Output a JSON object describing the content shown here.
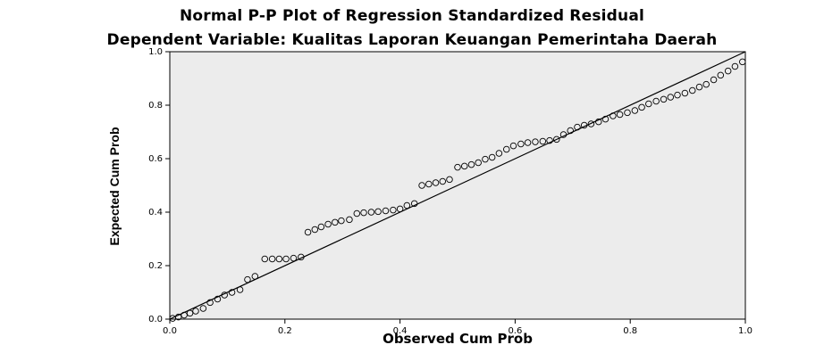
{
  "chart_data": {
    "type": "scatter",
    "title": "Normal P-P Plot of Regression Standardized Residual",
    "subtitle": "Dependent Variable: Kualitas Laporan Keuangan Pemerintaha Daerah",
    "xlabel": "Observed Cum Prob",
    "ylabel": "Expected Cum Prob",
    "xlim": [
      0.0,
      1.0
    ],
    "ylim": [
      0.0,
      1.0
    ],
    "xticks": [
      "0.0",
      "0.2",
      "0.4",
      "0.6",
      "0.8",
      "1.0"
    ],
    "yticks": [
      "0.0",
      "0.2",
      "0.4",
      "0.6",
      "0.8",
      "1.0"
    ],
    "reference_line": [
      [
        0.0,
        0.0
      ],
      [
        1.0,
        1.0
      ]
    ],
    "grid": false,
    "colors": {
      "plot_background": "#ececec",
      "marker": "#000000",
      "line": "#000000"
    },
    "points": [
      [
        0.005,
        0.003
      ],
      [
        0.015,
        0.008
      ],
      [
        0.025,
        0.015
      ],
      [
        0.035,
        0.022
      ],
      [
        0.045,
        0.03
      ],
      [
        0.058,
        0.04
      ],
      [
        0.07,
        0.062
      ],
      [
        0.083,
        0.075
      ],
      [
        0.095,
        0.09
      ],
      [
        0.108,
        0.1
      ],
      [
        0.122,
        0.11
      ],
      [
        0.135,
        0.148
      ],
      [
        0.148,
        0.16
      ],
      [
        0.165,
        0.225
      ],
      [
        0.178,
        0.225
      ],
      [
        0.19,
        0.225
      ],
      [
        0.202,
        0.225
      ],
      [
        0.215,
        0.228
      ],
      [
        0.228,
        0.232
      ],
      [
        0.24,
        0.325
      ],
      [
        0.252,
        0.335
      ],
      [
        0.263,
        0.345
      ],
      [
        0.275,
        0.355
      ],
      [
        0.287,
        0.362
      ],
      [
        0.298,
        0.368
      ],
      [
        0.312,
        0.372
      ],
      [
        0.325,
        0.395
      ],
      [
        0.337,
        0.398
      ],
      [
        0.35,
        0.4
      ],
      [
        0.362,
        0.402
      ],
      [
        0.375,
        0.405
      ],
      [
        0.388,
        0.408
      ],
      [
        0.4,
        0.412
      ],
      [
        0.412,
        0.425
      ],
      [
        0.425,
        0.432
      ],
      [
        0.438,
        0.5
      ],
      [
        0.45,
        0.505
      ],
      [
        0.462,
        0.51
      ],
      [
        0.474,
        0.515
      ],
      [
        0.486,
        0.522
      ],
      [
        0.5,
        0.568
      ],
      [
        0.512,
        0.572
      ],
      [
        0.524,
        0.578
      ],
      [
        0.536,
        0.585
      ],
      [
        0.548,
        0.598
      ],
      [
        0.56,
        0.605
      ],
      [
        0.572,
        0.62
      ],
      [
        0.585,
        0.635
      ],
      [
        0.597,
        0.648
      ],
      [
        0.61,
        0.655
      ],
      [
        0.622,
        0.66
      ],
      [
        0.635,
        0.663
      ],
      [
        0.648,
        0.665
      ],
      [
        0.66,
        0.668
      ],
      [
        0.672,
        0.672
      ],
      [
        0.684,
        0.69
      ],
      [
        0.696,
        0.705
      ],
      [
        0.708,
        0.718
      ],
      [
        0.72,
        0.725
      ],
      [
        0.732,
        0.73
      ],
      [
        0.745,
        0.738
      ],
      [
        0.757,
        0.748
      ],
      [
        0.77,
        0.76
      ],
      [
        0.782,
        0.765
      ],
      [
        0.795,
        0.772
      ],
      [
        0.808,
        0.78
      ],
      [
        0.82,
        0.792
      ],
      [
        0.832,
        0.805
      ],
      [
        0.845,
        0.815
      ],
      [
        0.858,
        0.822
      ],
      [
        0.87,
        0.83
      ],
      [
        0.882,
        0.838
      ],
      [
        0.895,
        0.845
      ],
      [
        0.908,
        0.855
      ],
      [
        0.92,
        0.868
      ],
      [
        0.932,
        0.878
      ],
      [
        0.945,
        0.895
      ],
      [
        0.957,
        0.912
      ],
      [
        0.97,
        0.928
      ],
      [
        0.982,
        0.945
      ],
      [
        0.995,
        0.962
      ]
    ]
  }
}
